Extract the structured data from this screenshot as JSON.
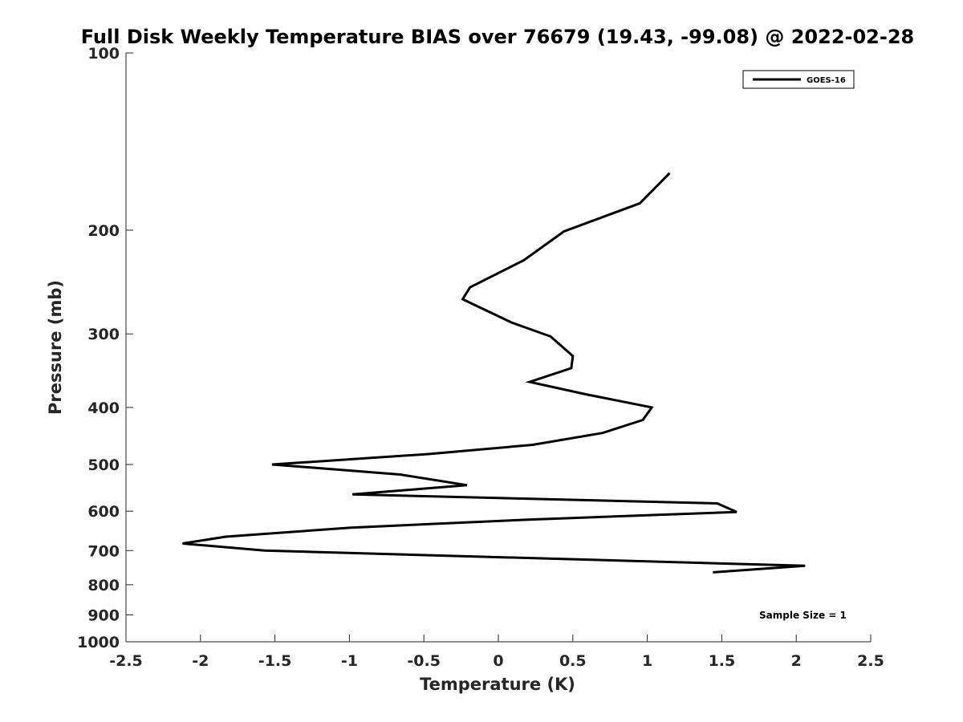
{
  "chart_data": {
    "type": "line",
    "title": "Full Disk Weekly Temperature BIAS over 76679 (19.43, -99.08) @ 2022-02-28",
    "xlabel": "Temperature (K)",
    "ylabel": "Pressure (mb)",
    "xlim": [
      -2.5,
      2.5
    ],
    "ylim": [
      100,
      1000
    ],
    "y_scale": "log",
    "y_reversed": true,
    "x_ticks": [
      "-2.5",
      "-2",
      "-1.5",
      "-1",
      "-0.5",
      "0",
      "0.5",
      "1",
      "1.5",
      "2",
      "2.5"
    ],
    "y_ticks": [
      "100",
      "200",
      "300",
      "400",
      "500",
      "600",
      "700",
      "800",
      "900",
      "1000"
    ],
    "grid": false,
    "legend_position": "top-right",
    "series": [
      {
        "name": "GOES-16",
        "color": "#000000",
        "points": [
          {
            "x": 1.15,
            "y": 160
          },
          {
            "x": 0.95,
            "y": 180
          },
          {
            "x": 0.44,
            "y": 201
          },
          {
            "x": 0.17,
            "y": 225
          },
          {
            "x": -0.19,
            "y": 250
          },
          {
            "x": -0.24,
            "y": 262
          },
          {
            "x": 0.09,
            "y": 287
          },
          {
            "x": 0.35,
            "y": 303
          },
          {
            "x": 0.5,
            "y": 327
          },
          {
            "x": 0.49,
            "y": 343
          },
          {
            "x": 0.21,
            "y": 362
          },
          {
            "x": 0.59,
            "y": 380
          },
          {
            "x": 1.03,
            "y": 400
          },
          {
            "x": 0.97,
            "y": 420
          },
          {
            "x": 0.7,
            "y": 442
          },
          {
            "x": 0.23,
            "y": 463
          },
          {
            "x": -0.47,
            "y": 480
          },
          {
            "x": -1.52,
            "y": 500
          },
          {
            "x": -0.66,
            "y": 520
          },
          {
            "x": -0.21,
            "y": 542
          },
          {
            "x": -0.98,
            "y": 562
          },
          {
            "x": 1.47,
            "y": 582
          },
          {
            "x": 1.6,
            "y": 602
          },
          {
            "x": 0.22,
            "y": 620
          },
          {
            "x": -0.99,
            "y": 640
          },
          {
            "x": -1.83,
            "y": 663
          },
          {
            "x": -2.12,
            "y": 681
          },
          {
            "x": -1.57,
            "y": 700
          },
          {
            "x": 2.06,
            "y": 743
          },
          {
            "x": 1.44,
            "y": 762
          }
        ]
      }
    ],
    "legend": [
      "GOES-16"
    ],
    "annotation": "Sample Size = 1"
  }
}
